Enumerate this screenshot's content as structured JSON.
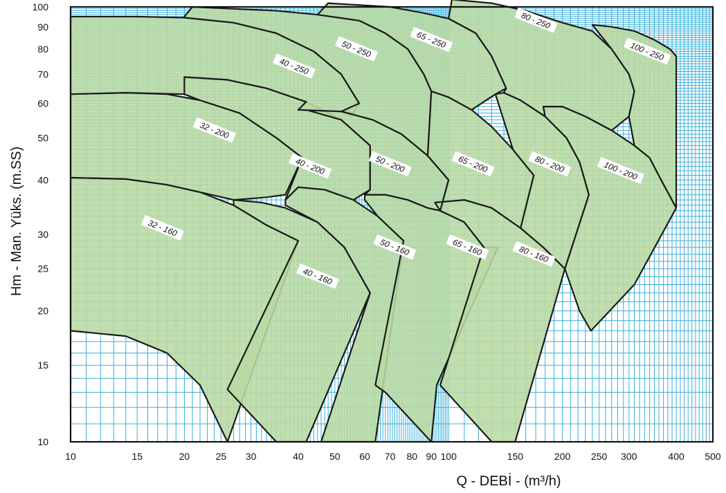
{
  "chart_data": {
    "type": "area",
    "xlabel": "Q - DEBİ - (m³/h)",
    "ylabel": "Hm - Man. Yüks. (m.SS)",
    "x_scale": "log",
    "y_scale": "log",
    "xlim": [
      10,
      500
    ],
    "ylim": [
      10,
      100
    ],
    "grid": true,
    "x_ticks": [
      {
        "value": 10,
        "label": "10"
      },
      {
        "value": 15,
        "label": "15"
      },
      {
        "value": 20,
        "label": "20"
      },
      {
        "value": 25,
        "label": "25"
      },
      {
        "value": 30,
        "label": "30"
      },
      {
        "value": 40,
        "label": "40"
      },
      {
        "value": 50,
        "label": "50"
      },
      {
        "value": 60,
        "label": "60"
      },
      {
        "value": 70,
        "label": "70"
      },
      {
        "value": 80,
        "label": "80"
      },
      {
        "value": 90,
        "label": "90"
      },
      {
        "value": 100,
        "label": "100"
      },
      {
        "value": 150,
        "label": "150"
      },
      {
        "value": 200,
        "label": "200"
      },
      {
        "value": 250,
        "label": "250"
      },
      {
        "value": 300,
        "label": "300"
      },
      {
        "value": 400,
        "label": "400"
      },
      {
        "value": 500,
        "label": "500"
      }
    ],
    "y_ticks": [
      {
        "value": 10,
        "label": "10"
      },
      {
        "value": 15,
        "label": "15"
      },
      {
        "value": 20,
        "label": "20"
      },
      {
        "value": 25,
        "label": "25"
      },
      {
        "value": 30,
        "label": "30"
      },
      {
        "value": 40,
        "label": "40"
      },
      {
        "value": 50,
        "label": "50"
      },
      {
        "value": 60,
        "label": "60"
      },
      {
        "value": 70,
        "label": "70"
      },
      {
        "value": 80,
        "label": "80"
      },
      {
        "value": 90,
        "label": "90"
      },
      {
        "value": 100,
        "label": "100"
      }
    ],
    "regions": [
      {
        "name": "32 - 160",
        "label_at": [
          17.5,
          31
        ],
        "points": [
          [
            10,
            40.5
          ],
          [
            14,
            40.2
          ],
          [
            18,
            39
          ],
          [
            22,
            37.5
          ],
          [
            27,
            35
          ],
          [
            33,
            31.5
          ],
          [
            40,
            29
          ],
          [
            26,
            10
          ],
          [
            22,
            13.5
          ],
          [
            18,
            16
          ],
          [
            14,
            17.5
          ],
          [
            10,
            18
          ]
        ]
      },
      {
        "name": "40 - 160",
        "label_at": [
          45,
          24
        ],
        "points": [
          [
            27,
            36
          ],
          [
            32,
            35.5
          ],
          [
            37,
            34.5
          ],
          [
            45,
            32
          ],
          [
            53,
            28
          ],
          [
            62,
            22
          ],
          [
            42,
            10
          ],
          [
            35,
            10
          ],
          [
            26,
            13.2
          ],
          [
            40,
            29
          ],
          [
            33,
            31.5
          ],
          [
            27,
            35
          ]
        ]
      },
      {
        "name": "50 - 160",
        "label_at": [
          72,
          28
        ],
        "points": [
          [
            37,
            36
          ],
          [
            40,
            38.5
          ],
          [
            47,
            38
          ],
          [
            56,
            36
          ],
          [
            65,
            33
          ],
          [
            76,
            29
          ],
          [
            64,
            10
          ],
          [
            53,
            10
          ],
          [
            50,
            10
          ],
          [
            46,
            10
          ],
          [
            62,
            22
          ],
          [
            53,
            28
          ],
          [
            45,
            32
          ],
          [
            37,
            35
          ]
        ]
      },
      {
        "name": "65 - 160",
        "label_at": [
          112,
          28
        ],
        "points": [
          [
            60,
            37
          ],
          [
            68,
            37
          ],
          [
            78,
            36
          ],
          [
            88,
            34.5
          ],
          [
            95,
            34
          ],
          [
            110,
            32
          ],
          [
            124,
            28
          ],
          [
            135,
            28
          ],
          [
            93,
            13.5
          ],
          [
            90,
            10
          ],
          [
            68,
            13
          ],
          [
            64,
            13.5
          ],
          [
            76,
            29
          ],
          [
            65,
            33
          ],
          [
            60,
            36
          ]
        ]
      },
      {
        "name": "80 - 160",
        "label_at": [
          168,
          27
        ],
        "points": [
          [
            92,
            35.5
          ],
          [
            110,
            36
          ],
          [
            130,
            34.5
          ],
          [
            155,
            31
          ],
          [
            178,
            28
          ],
          [
            203,
            25
          ],
          [
            150,
            10
          ],
          [
            130,
            10
          ],
          [
            95,
            13.5
          ],
          [
            124,
            28
          ],
          [
            110,
            32
          ],
          [
            95,
            34
          ],
          [
            92,
            35.5
          ]
        ]
      },
      {
        "name": "32 - 200",
        "label_at": [
          24,
          52
        ],
        "points": [
          [
            10,
            63
          ],
          [
            14,
            63.5
          ],
          [
            18,
            63
          ],
          [
            22,
            61
          ],
          [
            28,
            57
          ],
          [
            35,
            50
          ],
          [
            41,
            45
          ],
          [
            37,
            37
          ],
          [
            33,
            36.5
          ],
          [
            27,
            36
          ],
          [
            22,
            37.5
          ],
          [
            18,
            39
          ],
          [
            14,
            40.2
          ],
          [
            10,
            40.5
          ]
        ]
      },
      {
        "name": "40 - 200",
        "label_at": [
          43,
          43
        ],
        "points": [
          [
            20,
            63
          ],
          [
            20,
            69
          ],
          [
            26,
            68
          ],
          [
            33,
            65
          ],
          [
            42,
            60.5
          ],
          [
            52,
            55
          ],
          [
            62,
            48
          ],
          [
            62,
            38
          ],
          [
            56,
            36
          ],
          [
            47,
            38
          ],
          [
            40,
            38.5
          ],
          [
            37,
            36
          ],
          [
            41,
            45
          ],
          [
            35,
            50
          ],
          [
            28,
            57
          ],
          [
            22,
            61
          ]
        ]
      },
      {
        "name": "50 - 200",
        "label_at": [
          70,
          43.5
        ],
        "points": [
          [
            40,
            58
          ],
          [
            52,
            57.5
          ],
          [
            63,
            55
          ],
          [
            75,
            51
          ],
          [
            88,
            45.5
          ],
          [
            100,
            40
          ],
          [
            95,
            34
          ],
          [
            88,
            34.5
          ],
          [
            78,
            36
          ],
          [
            68,
            37
          ],
          [
            60,
            37
          ],
          [
            62,
            38
          ],
          [
            62,
            48
          ],
          [
            52,
            55
          ],
          [
            42,
            58
          ]
        ]
      },
      {
        "name": "65 - 200",
        "label_at": [
          116,
          43.5
        ],
        "points": [
          [
            90,
            64
          ],
          [
            100,
            62
          ],
          [
            115,
            58
          ],
          [
            130,
            53
          ],
          [
            148,
            47
          ],
          [
            168,
            41
          ],
          [
            155,
            31
          ],
          [
            130,
            34.5
          ],
          [
            110,
            36
          ],
          [
            92,
            35.5
          ],
          [
            95,
            34
          ],
          [
            100,
            40
          ],
          [
            88,
            45.5
          ],
          [
            90,
            64
          ]
        ]
      },
      {
        "name": "80 - 200",
        "label_at": [
          185,
          43.5
        ],
        "points": [
          [
            133,
            63
          ],
          [
            140,
            63.5
          ],
          [
            155,
            61
          ],
          [
            180,
            56
          ],
          [
            205,
            50
          ],
          [
            222,
            44
          ],
          [
            235,
            37
          ],
          [
            203,
            25
          ],
          [
            178,
            28
          ],
          [
            155,
            31
          ],
          [
            168,
            41
          ],
          [
            148,
            47
          ],
          [
            133,
            63
          ]
        ]
      },
      {
        "name": "100 - 200",
        "label_at": [
          285,
          42
        ],
        "points": [
          [
            178,
            59
          ],
          [
            200,
            59
          ],
          [
            230,
            56
          ],
          [
            270,
            52
          ],
          [
            310,
            48
          ],
          [
            340,
            45
          ],
          [
            365,
            40
          ],
          [
            400,
            34.5
          ],
          [
            310,
            23
          ],
          [
            238,
            18
          ],
          [
            222,
            20
          ],
          [
            203,
            25
          ],
          [
            235,
            37
          ],
          [
            222,
            44
          ],
          [
            205,
            50
          ],
          [
            180,
            56
          ],
          [
            178,
            59
          ]
        ]
      },
      {
        "name": "40 - 250",
        "label_at": [
          39,
          73
        ],
        "points": [
          [
            10,
            95
          ],
          [
            15,
            95
          ],
          [
            20,
            94.5
          ],
          [
            27,
            92
          ],
          [
            35,
            87
          ],
          [
            44,
            79
          ],
          [
            52,
            70
          ],
          [
            58,
            60
          ],
          [
            56,
            57
          ],
          [
            52,
            57.5
          ],
          [
            40,
            58
          ],
          [
            42,
            60.5
          ],
          [
            33,
            65
          ],
          [
            26,
            68
          ],
          [
            20,
            69
          ],
          [
            20,
            63
          ],
          [
            14,
            63.5
          ],
          [
            10,
            63
          ]
        ]
      },
      {
        "name": "50 - 250",
        "label_at": [
          57,
          80
        ],
        "points": [
          [
            20,
            95
          ],
          [
            21,
            100
          ],
          [
            35,
            98
          ],
          [
            45,
            96
          ],
          [
            58,
            93
          ],
          [
            68,
            87
          ],
          [
            78,
            80
          ],
          [
            86,
            70
          ],
          [
            90,
            64
          ],
          [
            88,
            45.5
          ],
          [
            75,
            51
          ],
          [
            63,
            55
          ],
          [
            52,
            57.5
          ],
          [
            58,
            60
          ],
          [
            52,
            70
          ],
          [
            44,
            79
          ],
          [
            35,
            87
          ],
          [
            27,
            92
          ],
          [
            20,
            94.5
          ]
        ]
      },
      {
        "name": "65 - 250",
        "label_at": [
          90,
          84
        ],
        "points": [
          [
            45,
            96
          ],
          [
            48,
            102
          ],
          [
            70,
            100
          ],
          [
            85,
            97
          ],
          [
            100,
            94
          ],
          [
            118,
            87
          ],
          [
            130,
            77
          ],
          [
            142,
            65
          ],
          [
            133,
            63
          ],
          [
            115,
            58
          ],
          [
            100,
            62
          ],
          [
            90,
            64
          ],
          [
            86,
            70
          ],
          [
            78,
            80
          ],
          [
            68,
            87
          ],
          [
            58,
            93
          ]
        ]
      },
      {
        "name": "80 - 250",
        "label_at": [
          170,
          93
        ],
        "points": [
          [
            100,
            94
          ],
          [
            102,
            104
          ],
          [
            130,
            102
          ],
          [
            160,
            98
          ],
          [
            200,
            92
          ],
          [
            240,
            88
          ],
          [
            270,
            80
          ],
          [
            300,
            70
          ],
          [
            310,
            64
          ],
          [
            300,
            56
          ],
          [
            270,
            52
          ],
          [
            230,
            56
          ],
          [
            200,
            59
          ],
          [
            178,
            59
          ],
          [
            180,
            56
          ],
          [
            155,
            61
          ],
          [
            140,
            63.5
          ],
          [
            142,
            65
          ],
          [
            130,
            77
          ],
          [
            118,
            87
          ]
        ]
      },
      {
        "name": "100 - 250",
        "label_at": [
          335,
          79
        ],
        "points": [
          [
            240,
            91
          ],
          [
            270,
            90
          ],
          [
            310,
            88
          ],
          [
            350,
            84
          ],
          [
            385,
            80
          ],
          [
            400,
            77
          ],
          [
            400,
            34.5
          ],
          [
            365,
            40
          ],
          [
            340,
            45
          ],
          [
            310,
            48
          ],
          [
            300,
            56
          ],
          [
            310,
            64
          ],
          [
            300,
            70
          ],
          [
            270,
            80
          ]
        ]
      }
    ],
    "colors": {
      "fill": "#b8d9a3",
      "grid": "#3aaed8",
      "outline": "#1a1a1a",
      "frame": "#111111",
      "label_bg": "#ffffff"
    }
  }
}
